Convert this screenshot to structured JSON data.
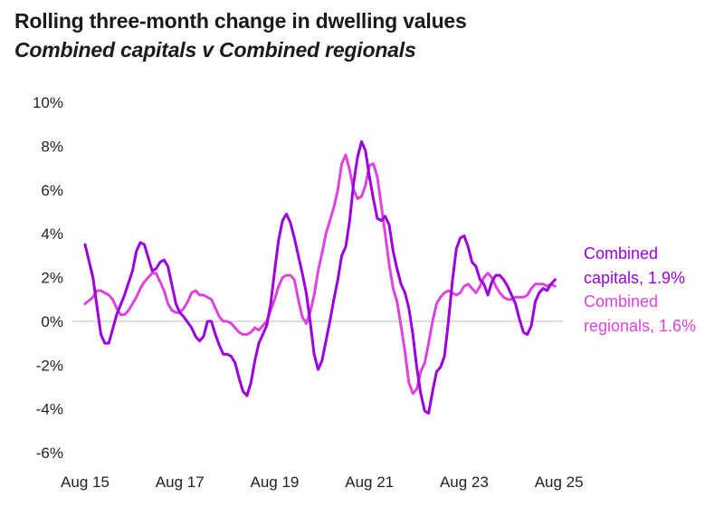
{
  "header": {
    "title": "Rolling three-month change in dwelling values",
    "subtitle": "Combined capitals v Combined regionals"
  },
  "chart_data": {
    "type": "line",
    "title": "Rolling three-month change in dwelling values",
    "subtitle": "Combined capitals v Combined regionals",
    "xlabel": "",
    "ylabel": "",
    "ylim": [
      -6,
      10
    ],
    "yticks": [
      10,
      8,
      6,
      4,
      2,
      0,
      -2,
      -4,
      -6
    ],
    "ytick_labels": [
      "10%",
      "8%",
      "6%",
      "4%",
      "2%",
      "0%",
      "-2%",
      "-4%",
      "-6%"
    ],
    "x_start": "Aug 15",
    "xticks": [
      0,
      24,
      48,
      72,
      96,
      120
    ],
    "xtick_labels": [
      "Aug 15",
      "Aug 17",
      "Aug 19",
      "Aug 21",
      "Aug 23",
      "Aug 25"
    ],
    "x_domain": [
      0,
      121
    ],
    "series": [
      {
        "name": "Combined capitals",
        "label": "Combined capitals, 1.9%",
        "label_line1": "Combined",
        "label_line2": "capitals, 1.9%",
        "color": "#9b00e0",
        "points": [
          [
            0,
            3.5
          ],
          [
            2,
            2.0
          ],
          [
            4,
            -0.6
          ],
          [
            5,
            -1.0
          ],
          [
            6,
            -1.0
          ],
          [
            8,
            0.3
          ],
          [
            10,
            1.2
          ],
          [
            12,
            2.3
          ],
          [
            13,
            3.2
          ],
          [
            14,
            3.6
          ],
          [
            15,
            3.5
          ],
          [
            17,
            2.3
          ],
          [
            18,
            2.4
          ],
          [
            19,
            2.7
          ],
          [
            20,
            2.8
          ],
          [
            21,
            2.5
          ],
          [
            23,
            0.8
          ],
          [
            24,
            0.4
          ],
          [
            25,
            0.2
          ],
          [
            27,
            -0.3
          ],
          [
            28,
            -0.7
          ],
          [
            29,
            -0.9
          ],
          [
            30,
            -0.7
          ],
          [
            31,
            0.0
          ],
          [
            32,
            0.0
          ],
          [
            33,
            -0.6
          ],
          [
            34,
            -1.1
          ],
          [
            35,
            -1.5
          ],
          [
            36,
            -1.5
          ],
          [
            37,
            -1.6
          ],
          [
            38,
            -1.9
          ],
          [
            39,
            -2.6
          ],
          [
            40,
            -3.2
          ],
          [
            41,
            -3.4
          ],
          [
            42,
            -2.8
          ],
          [
            43,
            -1.8
          ],
          [
            44,
            -1.0
          ],
          [
            45,
            -0.6
          ],
          [
            46,
            -0.2
          ],
          [
            47,
            0.8
          ],
          [
            48,
            2.3
          ],
          [
            49,
            3.7
          ],
          [
            50,
            4.6
          ],
          [
            51,
            4.9
          ],
          [
            52,
            4.5
          ],
          [
            53,
            3.8
          ],
          [
            54,
            3.0
          ],
          [
            55,
            2.2
          ],
          [
            56,
            1.3
          ],
          [
            57,
            0.0
          ],
          [
            58,
            -1.5
          ],
          [
            59,
            -2.2
          ],
          [
            60,
            -1.8
          ],
          [
            61,
            -0.9
          ],
          [
            62,
            0.0
          ],
          [
            63,
            1.0
          ],
          [
            64,
            1.9
          ],
          [
            65,
            3.0
          ],
          [
            66,
            3.4
          ],
          [
            67,
            4.6
          ],
          [
            68,
            6.3
          ],
          [
            69,
            7.5
          ],
          [
            70,
            8.2
          ],
          [
            71,
            7.8
          ],
          [
            72,
            6.6
          ],
          [
            73,
            5.6
          ],
          [
            74,
            4.7
          ],
          [
            75,
            4.6
          ],
          [
            76,
            4.8
          ],
          [
            77,
            4.4
          ],
          [
            78,
            3.2
          ],
          [
            79,
            2.4
          ],
          [
            80,
            1.7
          ],
          [
            81,
            1.3
          ],
          [
            82,
            0.6
          ],
          [
            83,
            -0.6
          ],
          [
            84,
            -2.1
          ],
          [
            85,
            -3.3
          ],
          [
            86,
            -4.1
          ],
          [
            87,
            -4.2
          ],
          [
            88,
            -3.2
          ],
          [
            89,
            -2.3
          ],
          [
            90,
            -2.1
          ],
          [
            91,
            -1.6
          ],
          [
            92,
            0.0
          ],
          [
            93,
            1.8
          ],
          [
            94,
            3.3
          ],
          [
            95,
            3.8
          ],
          [
            96,
            3.9
          ],
          [
            97,
            3.4
          ],
          [
            98,
            2.7
          ],
          [
            99,
            2.5
          ],
          [
            100,
            1.9
          ],
          [
            101,
            1.7
          ],
          [
            102,
            1.2
          ],
          [
            103,
            1.8
          ],
          [
            104,
            2.1
          ],
          [
            105,
            2.1
          ],
          [
            106,
            1.9
          ],
          [
            107,
            1.6
          ],
          [
            108,
            1.2
          ],
          [
            109,
            0.8
          ],
          [
            110,
            0.1
          ],
          [
            111,
            -0.5
          ],
          [
            112,
            -0.6
          ],
          [
            113,
            -0.2
          ],
          [
            114,
            0.9
          ],
          [
            115,
            1.3
          ],
          [
            116,
            1.5
          ],
          [
            117,
            1.4
          ],
          [
            118,
            1.7
          ],
          [
            119,
            1.9
          ]
        ]
      },
      {
        "name": "Combined regionals",
        "label": "Combined regionals, 1.6%",
        "label_line1": "Combined",
        "label_line2": "regionals, 1.6%",
        "color": "#dd44dd",
        "points": [
          [
            0,
            0.8
          ],
          [
            2,
            1.1
          ],
          [
            3,
            1.4
          ],
          [
            4,
            1.4
          ],
          [
            6,
            1.2
          ],
          [
            7,
            1.0
          ],
          [
            8,
            0.6
          ],
          [
            9,
            0.3
          ],
          [
            10,
            0.3
          ],
          [
            11,
            0.5
          ],
          [
            12,
            0.8
          ],
          [
            13,
            1.1
          ],
          [
            14,
            1.5
          ],
          [
            15,
            1.8
          ],
          [
            16,
            2.0
          ],
          [
            17,
            2.2
          ],
          [
            18,
            2.2
          ],
          [
            19,
            1.8
          ],
          [
            20,
            1.4
          ],
          [
            21,
            0.8
          ],
          [
            22,
            0.5
          ],
          [
            23,
            0.4
          ],
          [
            24,
            0.4
          ],
          [
            25,
            0.6
          ],
          [
            26,
            0.9
          ],
          [
            27,
            1.3
          ],
          [
            28,
            1.4
          ],
          [
            29,
            1.2
          ],
          [
            30,
            1.2
          ],
          [
            31,
            1.1
          ],
          [
            32,
            1.0
          ],
          [
            33,
            0.6
          ],
          [
            34,
            0.2
          ],
          [
            35,
            0.0
          ],
          [
            36,
            0.0
          ],
          [
            37,
            -0.1
          ],
          [
            38,
            -0.3
          ],
          [
            39,
            -0.5
          ],
          [
            40,
            -0.6
          ],
          [
            41,
            -0.6
          ],
          [
            42,
            -0.5
          ],
          [
            43,
            -0.3
          ],
          [
            44,
            -0.4
          ],
          [
            45,
            -0.2
          ],
          [
            46,
            0.0
          ],
          [
            47,
            0.5
          ],
          [
            48,
            1.0
          ],
          [
            49,
            1.6
          ],
          [
            50,
            2.0
          ],
          [
            51,
            2.1
          ],
          [
            52,
            2.1
          ],
          [
            53,
            1.9
          ],
          [
            54,
            1.0
          ],
          [
            55,
            0.2
          ],
          [
            56,
            -0.1
          ],
          [
            57,
            0.4
          ],
          [
            58,
            1.2
          ],
          [
            59,
            2.3
          ],
          [
            60,
            3.1
          ],
          [
            61,
            4.0
          ],
          [
            62,
            4.6
          ],
          [
            63,
            5.2
          ],
          [
            64,
            6.0
          ],
          [
            65,
            7.2
          ],
          [
            66,
            7.6
          ],
          [
            67,
            6.9
          ],
          [
            68,
            6.0
          ],
          [
            69,
            5.6
          ],
          [
            70,
            5.7
          ],
          [
            71,
            6.2
          ],
          [
            72,
            7.1
          ],
          [
            73,
            7.2
          ],
          [
            74,
            6.6
          ],
          [
            75,
            5.3
          ],
          [
            76,
            4.0
          ],
          [
            77,
            2.6
          ],
          [
            78,
            1.5
          ],
          [
            79,
            0.9
          ],
          [
            80,
            -0.2
          ],
          [
            81,
            -1.4
          ],
          [
            82,
            -2.8
          ],
          [
            83,
            -3.3
          ],
          [
            84,
            -3.1
          ],
          [
            85,
            -2.3
          ],
          [
            86,
            -1.9
          ],
          [
            87,
            -1.0
          ],
          [
            88,
            0.0
          ],
          [
            89,
            0.8
          ],
          [
            90,
            1.1
          ],
          [
            91,
            1.3
          ],
          [
            92,
            1.4
          ],
          [
            93,
            1.3
          ],
          [
            94,
            1.2
          ],
          [
            95,
            1.3
          ],
          [
            96,
            1.6
          ],
          [
            97,
            1.7
          ],
          [
            98,
            1.5
          ],
          [
            99,
            1.3
          ],
          [
            100,
            1.6
          ],
          [
            101,
            2.0
          ],
          [
            102,
            2.2
          ],
          [
            103,
            2.0
          ],
          [
            104,
            1.6
          ],
          [
            105,
            1.3
          ],
          [
            106,
            1.1
          ],
          [
            107,
            1.0
          ],
          [
            108,
            1.0
          ],
          [
            109,
            1.1
          ],
          [
            110,
            1.1
          ],
          [
            111,
            1.1
          ],
          [
            112,
            1.2
          ],
          [
            113,
            1.5
          ],
          [
            114,
            1.7
          ],
          [
            115,
            1.7
          ],
          [
            116,
            1.7
          ],
          [
            117,
            1.6
          ],
          [
            118,
            1.7
          ],
          [
            119,
            1.6
          ]
        ]
      }
    ],
    "zero_line": true,
    "grid": false,
    "legend": "end labels on right"
  }
}
